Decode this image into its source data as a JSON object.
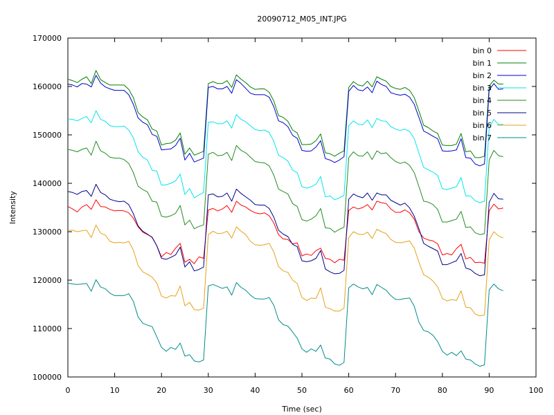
{
  "chart_data": {
    "type": "line",
    "title": "20090712_M05_INT.JPG",
    "xlabel": "Time (sec)",
    "ylabel": "Intensity",
    "xlim": [
      0,
      100
    ],
    "ylim": [
      100000,
      170000
    ],
    "xticks": [
      0,
      10,
      20,
      30,
      40,
      50,
      60,
      70,
      80,
      90,
      100
    ],
    "yticks": [
      100000,
      110000,
      120000,
      130000,
      140000,
      150000,
      160000,
      170000
    ],
    "grid": false,
    "legend_position": "top-right",
    "x": [
      0,
      1,
      2,
      3,
      4,
      5,
      6,
      7,
      8,
      9,
      10,
      11,
      12,
      13,
      14,
      15,
      16,
      17,
      18,
      19,
      20,
      21,
      22,
      23,
      24,
      25,
      26,
      27,
      28,
      29,
      30,
      31,
      32,
      33,
      34,
      35,
      36,
      37,
      38,
      39,
      40,
      41,
      42,
      43,
      44,
      45,
      46,
      47,
      48,
      49,
      50,
      51,
      52,
      53,
      54,
      55,
      56,
      57,
      58,
      59,
      60,
      61,
      62,
      63,
      64,
      65,
      66,
      67,
      68,
      69,
      70,
      71,
      72,
      73,
      74,
      75,
      76,
      77,
      78,
      79,
      80,
      81,
      82,
      83,
      84,
      85,
      86,
      87,
      88,
      89,
      90,
      91,
      92,
      93
    ],
    "series": [
      {
        "name": "bin 0",
        "color": "#ff0000",
        "values": [
          135200,
          134700,
          134100,
          135100,
          135600,
          134600,
          136600,
          135200,
          135100,
          134600,
          134300,
          134400,
          134300,
          133900,
          132800,
          131000,
          129900,
          129400,
          128900,
          127100,
          124800,
          125700,
          125300,
          126600,
          127600,
          123700,
          124300,
          123400,
          124800,
          124500,
          134500,
          134800,
          134300,
          134700,
          135400,
          134000,
          136300,
          135500,
          135100,
          134400,
          133900,
          133700,
          133900,
          133300,
          131800,
          129400,
          128500,
          128400,
          127500,
          127700,
          125000,
          125400,
          125100,
          126100,
          126600,
          124500,
          124300,
          123600,
          124300,
          124100,
          134400,
          135100,
          134700,
          135000,
          135600,
          134500,
          136300,
          136000,
          135800,
          134700,
          134000,
          134000,
          134500,
          133900,
          132600,
          130000,
          128700,
          128300,
          128100,
          127500,
          125200,
          125500,
          125200,
          126500,
          127400,
          124400,
          124700,
          123600,
          123700,
          123500,
          134300,
          135700,
          134700,
          134900
        ]
      },
      {
        "name": "bin 1",
        "color": "#008000",
        "values": [
          161500,
          161200,
          160800,
          161500,
          162000,
          160600,
          163300,
          161400,
          160800,
          160300,
          160300,
          160300,
          160300,
          159400,
          157700,
          154600,
          153700,
          153100,
          151200,
          150800,
          147900,
          148200,
          148300,
          148900,
          150400,
          146000,
          147300,
          145800,
          146200,
          146600,
          160600,
          161000,
          160600,
          160600,
          161200,
          159800,
          162400,
          161500,
          160800,
          159900,
          159400,
          159500,
          159500,
          158800,
          157000,
          154000,
          153600,
          152800,
          151000,
          150400,
          148000,
          148000,
          148100,
          148800,
          150200,
          146300,
          146100,
          145600,
          146200,
          146700,
          159800,
          161000,
          160300,
          160100,
          161100,
          159900,
          162000,
          161500,
          161100,
          160000,
          159600,
          159400,
          159800,
          159200,
          157700,
          154900,
          152000,
          151500,
          150800,
          150300,
          147900,
          147800,
          147800,
          148100,
          150300,
          146500,
          146700,
          145300,
          145300,
          145600,
          160100,
          161300,
          160500,
          160500
        ]
      },
      {
        "name": "bin 2",
        "color": "#0000cd",
        "values": [
          160500,
          160300,
          159900,
          160600,
          160500,
          159900,
          162300,
          160700,
          159900,
          159500,
          159200,
          159200,
          159200,
          158300,
          156300,
          153500,
          152600,
          152100,
          150100,
          149700,
          146900,
          147000,
          147100,
          147800,
          149300,
          144800,
          146200,
          144400,
          144800,
          145200,
          159800,
          160000,
          159500,
          159500,
          160000,
          158600,
          161400,
          160600,
          159600,
          158600,
          158300,
          158300,
          158300,
          157800,
          155800,
          152900,
          152500,
          151700,
          149900,
          149300,
          146800,
          146600,
          146700,
          147500,
          148800,
          145100,
          144800,
          144300,
          144800,
          145500,
          159000,
          160200,
          159300,
          159100,
          159900,
          158700,
          161100,
          160400,
          160000,
          158700,
          158400,
          158200,
          158400,
          157800,
          156300,
          153600,
          150800,
          150300,
          149700,
          149200,
          146700,
          146600,
          146700,
          146900,
          149200,
          145300,
          145200,
          144000,
          143600,
          144000,
          159300,
          160600,
          159400,
          159500
        ]
      },
      {
        "name": "bin 3",
        "color": "#00e5ee",
        "values": [
          153300,
          153200,
          152900,
          153400,
          153800,
          152500,
          155000,
          153200,
          152800,
          151900,
          151700,
          151700,
          151800,
          151000,
          149400,
          146500,
          145400,
          144800,
          142700,
          142500,
          139600,
          139700,
          140000,
          140500,
          141900,
          137700,
          138900,
          137000,
          137600,
          138100,
          152600,
          152700,
          152300,
          152300,
          152900,
          151400,
          154200,
          153200,
          152700,
          151900,
          151100,
          150900,
          151000,
          150500,
          148700,
          145800,
          145300,
          144600,
          142700,
          142200,
          139300,
          139000,
          139300,
          139800,
          141400,
          137200,
          137400,
          136600,
          137000,
          137500,
          151900,
          152900,
          152200,
          152100,
          153100,
          151500,
          153400,
          152900,
          152800,
          151700,
          151200,
          150900,
          151200,
          150700,
          149200,
          146200,
          143300,
          142800,
          142300,
          141600,
          138900,
          138700,
          139000,
          139300,
          141200,
          137400,
          137400,
          136400,
          136000,
          136300,
          151500,
          153200,
          152100,
          152200
        ]
      },
      {
        "name": "bin 4",
        "color": "#228b22",
        "values": [
          147000,
          146800,
          146500,
          147000,
          147300,
          145800,
          148700,
          146700,
          146200,
          145400,
          145200,
          145200,
          144900,
          144100,
          142200,
          139400,
          138700,
          138200,
          136300,
          136100,
          133200,
          133000,
          133300,
          133800,
          135400,
          131400,
          132400,
          130600,
          131100,
          131400,
          146000,
          146400,
          145700,
          145800,
          146400,
          144700,
          147800,
          146800,
          146300,
          145400,
          144500,
          144300,
          144200,
          143600,
          141700,
          138800,
          138300,
          137800,
          135800,
          135200,
          132500,
          132200,
          132600,
          133300,
          134800,
          130800,
          130700,
          129900,
          130500,
          130900,
          145300,
          146500,
          145700,
          145600,
          146500,
          144900,
          146700,
          146100,
          146300,
          145300,
          144500,
          144100,
          144400,
          143700,
          142200,
          139300,
          136300,
          136100,
          135600,
          134600,
          132000,
          132000,
          132300,
          132600,
          134200,
          130900,
          131000,
          129800,
          129400,
          129600,
          144800,
          146800,
          145700,
          145500
        ]
      },
      {
        "name": "bin 5",
        "color": "#00008b",
        "values": [
          138300,
          138100,
          137700,
          138300,
          138500,
          137300,
          139800,
          138100,
          137600,
          136700,
          136400,
          136200,
          136300,
          135600,
          133700,
          131200,
          130100,
          129500,
          128800,
          127100,
          124500,
          124300,
          124700,
          125200,
          126800,
          122700,
          123800,
          121900,
          122200,
          122700,
          137600,
          137800,
          137200,
          137300,
          138000,
          136300,
          138800,
          137900,
          137200,
          136500,
          135600,
          135500,
          135500,
          134800,
          133000,
          130300,
          129500,
          129000,
          127400,
          126900,
          124000,
          123800,
          124000,
          124500,
          126100,
          122300,
          121700,
          121300,
          121400,
          122000,
          136700,
          137800,
          137300,
          137000,
          138000,
          136500,
          138000,
          137600,
          137600,
          136500,
          136000,
          135500,
          135900,
          134900,
          133200,
          130600,
          127600,
          127000,
          126500,
          126000,
          123200,
          123200,
          123600,
          124000,
          125500,
          122500,
          122200,
          121400,
          120900,
          121100,
          136100,
          137900,
          136800,
          136700
        ]
      },
      {
        "name": "bin 6",
        "color": "#e6a117",
        "values": [
          130300,
          130300,
          130000,
          130200,
          130300,
          128800,
          131400,
          129700,
          129300,
          128000,
          127700,
          127800,
          127700,
          128000,
          126200,
          123000,
          121700,
          121200,
          120600,
          119400,
          116700,
          116300,
          116800,
          116700,
          118800,
          114700,
          115400,
          113900,
          113800,
          114200,
          129400,
          130100,
          129600,
          129700,
          130100,
          128700,
          131000,
          130100,
          129400,
          128000,
          127300,
          127200,
          127300,
          127600,
          125800,
          122800,
          121900,
          121600,
          120000,
          119300,
          116400,
          115800,
          116300,
          116200,
          118400,
          114400,
          114100,
          113600,
          113600,
          114200,
          128800,
          130000,
          129500,
          129400,
          129900,
          128600,
          130500,
          130000,
          129600,
          128400,
          127800,
          127700,
          127900,
          128100,
          126600,
          123700,
          121100,
          120600,
          119800,
          118600,
          116200,
          115700,
          116000,
          115800,
          117800,
          114400,
          114300,
          113000,
          112600,
          112800,
          128300,
          130000,
          129100,
          128700
        ]
      },
      {
        "name": "bin 7",
        "color": "#008b8b",
        "values": [
          119400,
          119200,
          119100,
          119200,
          119300,
          117700,
          120100,
          118600,
          118200,
          117300,
          116800,
          116800,
          116800,
          117200,
          115600,
          112400,
          111100,
          110700,
          110400,
          108300,
          106100,
          105300,
          106100,
          105700,
          107000,
          104300,
          104600,
          103300,
          103100,
          103500,
          118800,
          119100,
          118700,
          118300,
          118600,
          116900,
          119500,
          118500,
          117900,
          116900,
          116200,
          116100,
          116100,
          116400,
          114800,
          111800,
          110800,
          110500,
          109300,
          108000,
          105800,
          105100,
          105800,
          105300,
          106600,
          103900,
          103700,
          102700,
          102400,
          103000,
          118400,
          119200,
          118600,
          118200,
          118500,
          117000,
          119100,
          118500,
          117900,
          116800,
          116000,
          116000,
          116200,
          116300,
          114600,
          111300,
          109600,
          109300,
          108600,
          107300,
          105300,
          104500,
          105100,
          104400,
          105400,
          103700,
          103500,
          102700,
          102200,
          102500,
          118000,
          119200,
          118200,
          117800
        ]
      }
    ]
  }
}
